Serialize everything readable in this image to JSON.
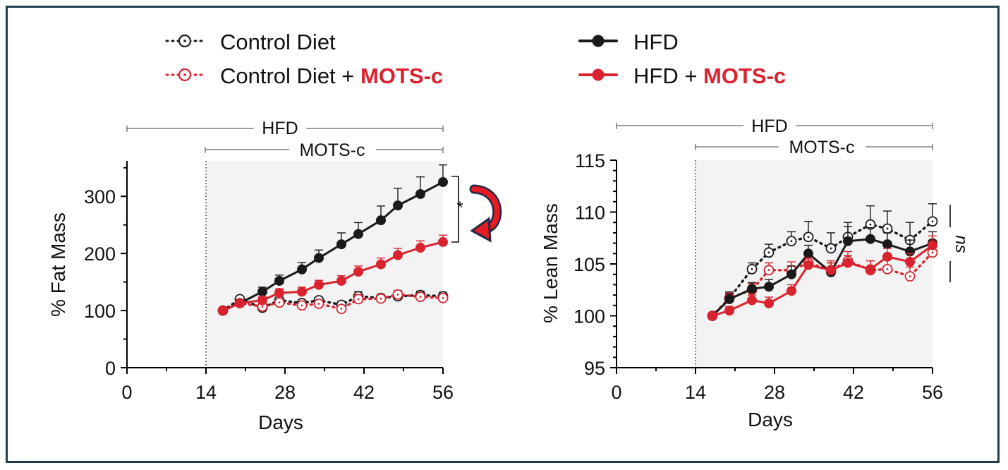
{
  "colors": {
    "black": "#1a1a1a",
    "red": "#d9232f",
    "shade": "#f3f3f3",
    "frame": "#1f3f4f"
  },
  "legend": [
    {
      "id": "control",
      "text": "Control Diet",
      "suffix": "",
      "style": "dotted-open",
      "color": "#1a1a1a"
    },
    {
      "id": "control_mots",
      "text": "Control Diet + ",
      "suffix": "MOTS-c",
      "style": "dotted-open",
      "color": "#d9232f"
    },
    {
      "id": "hfd",
      "text": "HFD",
      "suffix": "",
      "style": "solid-filled",
      "color": "#1a1a1a"
    },
    {
      "id": "hfd_mots",
      "text": "HFD + ",
      "suffix": "MOTS-c",
      "style": "solid-filled",
      "color": "#d9232f"
    }
  ],
  "panels": {
    "fat": {
      "bracket_hfd": "HFD",
      "bracket_mots": "MOTS-c",
      "ylabel": "% Fat Mass",
      "xlabel": "Days",
      "sig_label": "*"
    },
    "lean": {
      "bracket_hfd": "HFD",
      "bracket_mots": "MOTS-c",
      "ylabel": "% Lean Mass",
      "xlabel": "Days",
      "sig_label": "ns"
    }
  },
  "chart_data": [
    {
      "type": "line",
      "ylabel": "% Fat Mass",
      "xlabel": "Days",
      "xlim": [
        0,
        56
      ],
      "ylim": [
        0,
        360
      ],
      "xticks": [
        0,
        14,
        28,
        42,
        56
      ],
      "yticks": [
        0,
        100,
        200,
        300
      ],
      "shaded_region_x": [
        14,
        56
      ],
      "treatment_start_day": 14,
      "series": [
        {
          "name": "Control Diet",
          "style": "dotted-open",
          "color": "#1a1a1a",
          "x": [
            17,
            20,
            24,
            27,
            31,
            34,
            38,
            41,
            45,
            48,
            52,
            56
          ],
          "y": [
            100,
            120,
            105,
            118,
            113,
            118,
            110,
            125,
            122,
            125,
            127,
            125
          ],
          "err": [
            0,
            4,
            5,
            5,
            5,
            5,
            6,
            8,
            6,
            7,
            7,
            7
          ]
        },
        {
          "name": "Control Diet + MOTS-c",
          "style": "dotted-open",
          "color": "#d9232f",
          "x": [
            17,
            20,
            24,
            27,
            31,
            34,
            38,
            41,
            45,
            48,
            52,
            56
          ],
          "y": [
            100,
            113,
            107,
            114,
            109,
            112,
            103,
            120,
            121,
            128,
            124,
            122
          ],
          "err": [
            0,
            4,
            5,
            5,
            5,
            5,
            5,
            8,
            6,
            7,
            6,
            6
          ]
        },
        {
          "name": "HFD",
          "style": "solid-filled",
          "color": "#1a1a1a",
          "x": [
            17,
            20,
            24,
            27,
            31,
            34,
            38,
            41,
            45,
            48,
            52,
            56
          ],
          "y": [
            100,
            113,
            133,
            152,
            172,
            192,
            216,
            234,
            258,
            284,
            304,
            325
          ],
          "err": [
            0,
            5,
            8,
            10,
            12,
            14,
            20,
            20,
            25,
            30,
            30,
            30
          ]
        },
        {
          "name": "HFD + MOTS-c",
          "style": "solid-filled",
          "color": "#d9232f",
          "x": [
            17,
            20,
            24,
            27,
            31,
            34,
            38,
            41,
            45,
            48,
            52,
            56
          ],
          "y": [
            100,
            113,
            118,
            131,
            133,
            145,
            152,
            168,
            181,
            197,
            210,
            220
          ],
          "err": [
            0,
            4,
            6,
            7,
            8,
            8,
            9,
            10,
            11,
            12,
            12,
            12
          ]
        }
      ]
    },
    {
      "type": "line",
      "ylabel": "% Lean Mass",
      "xlabel": "Days",
      "xlim": [
        0,
        56
      ],
      "ylim": [
        95,
        115
      ],
      "xticks": [
        0,
        14,
        28,
        42,
        56
      ],
      "yticks": [
        95,
        100,
        105,
        110,
        115
      ],
      "shaded_region_x": [
        14,
        56
      ],
      "treatment_start_day": 14,
      "series": [
        {
          "name": "Control Diet",
          "style": "dotted-open",
          "color": "#1a1a1a",
          "x": [
            17,
            20,
            24,
            27,
            31,
            34,
            38,
            41,
            45,
            48,
            52,
            56
          ],
          "y": [
            100,
            101.7,
            104.5,
            106.1,
            107.2,
            107.6,
            106.5,
            107.6,
            108.8,
            108.4,
            107.3,
            109.1
          ],
          "err": [
            0,
            0.6,
            0.6,
            0.8,
            0.9,
            1.5,
            1.5,
            1.4,
            1.8,
            1.7,
            1.7,
            1.7
          ]
        },
        {
          "name": "Control Diet + MOTS-c",
          "style": "dotted-open",
          "color": "#d9232f",
          "x": [
            17,
            20,
            24,
            27,
            31,
            34,
            38,
            41,
            45,
            48,
            52,
            56
          ],
          "y": [
            100,
            101.7,
            102.5,
            104.4,
            104.4,
            105.1,
            104.4,
            105.3,
            104.4,
            104.5,
            103.8,
            106.1
          ],
          "err": [
            0,
            0.5,
            0.6,
            0.7,
            0.8,
            0.9,
            0.9,
            0.9,
            0.9,
            0.9,
            0.9,
            1.2
          ]
        },
        {
          "name": "HFD",
          "style": "solid-filled",
          "color": "#1a1a1a",
          "x": [
            17,
            20,
            24,
            27,
            31,
            34,
            38,
            41,
            45,
            48,
            52,
            56
          ],
          "y": [
            100,
            101.6,
            102.6,
            102.8,
            104.0,
            106.0,
            104.2,
            107.2,
            107.4,
            106.9,
            106.2,
            107.0
          ],
          "err": [
            0,
            0.5,
            0.6,
            0.7,
            0.8,
            0.8,
            0.9,
            1.4,
            1.1,
            1.1,
            1.1,
            1.1
          ]
        },
        {
          "name": "HFD + MOTS-c",
          "style": "solid-filled",
          "color": "#d9232f",
          "x": [
            17,
            20,
            24,
            27,
            31,
            34,
            38,
            41,
            45,
            48,
            52,
            56
          ],
          "y": [
            100,
            100.5,
            101.5,
            101.2,
            102.4,
            104.9,
            104.4,
            105.1,
            104.5,
            105.7,
            105.2,
            106.8
          ],
          "err": [
            0,
            0.4,
            0.5,
            0.6,
            0.6,
            0.7,
            0.7,
            0.7,
            0.8,
            0.8,
            0.8,
            0.9
          ]
        }
      ]
    }
  ]
}
